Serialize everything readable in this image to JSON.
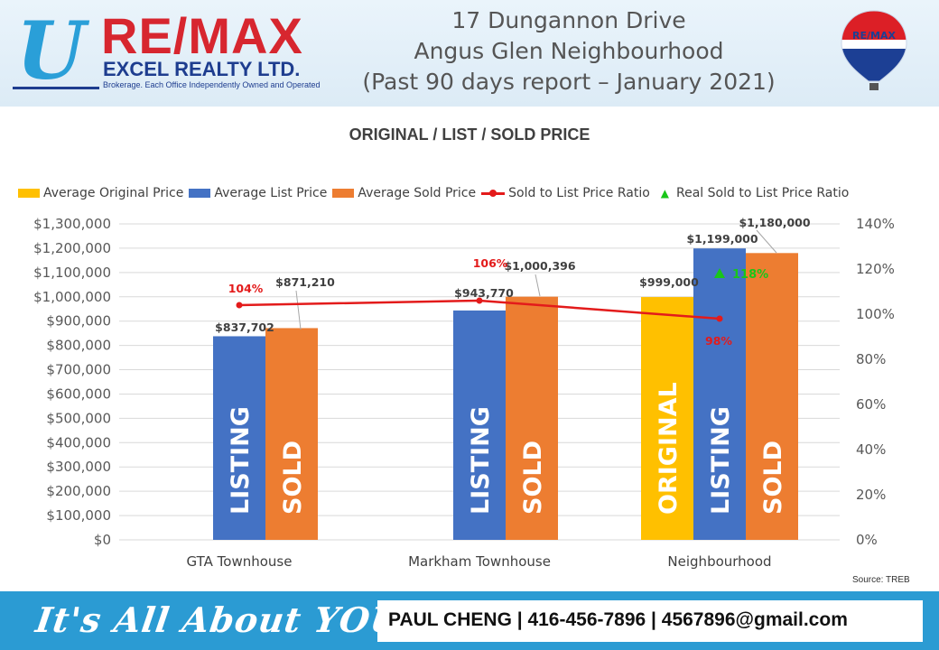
{
  "header": {
    "logo_u": "U",
    "logo_brand": "RE/MAX",
    "logo_company": "EXCEL REALTY LTD.",
    "logo_tagline": "Brokerage. Each Office Independently Owned and Operated",
    "title_lines": [
      "17 Dungannon Drive",
      "Angus Glen Neighbourhood",
      "(Past 90 days report – January 2021)"
    ],
    "balloon_text": "RE/MAX"
  },
  "footer": {
    "tagline": "It's All About YOU",
    "contact": "PAUL CHENG | 416-456-7896 | 4567896@gmail.com"
  },
  "source": "Source: TREB",
  "colors": {
    "original": "#ffc000",
    "list": "#4472c4",
    "sold": "#ed7d31",
    "ratio": "#e31b1b",
    "real_ratio": "#19c619"
  },
  "chart_data": {
    "type": "bar",
    "title": "ORIGINAL / LIST / SOLD PRICE",
    "categories": [
      "GTA Townhouse",
      "Markham Townhouse",
      "Neighbourhood"
    ],
    "series": [
      {
        "name": "Average Original Price",
        "values": [
          null,
          null,
          999000
        ],
        "labels": [
          "",
          "",
          "$999,000"
        ],
        "bar_text": [
          "",
          "",
          "ORIGINAL"
        ]
      },
      {
        "name": "Average List Price",
        "values": [
          837702,
          943770,
          1199000
        ],
        "labels": [
          "$837,702",
          "$943,770",
          "$1,199,000"
        ],
        "bar_text": [
          "LISTING",
          "LISTING",
          "LISTING"
        ]
      },
      {
        "name": "Average Sold Price",
        "values": [
          871210,
          1000396,
          1180000
        ],
        "labels": [
          "$871,210",
          "$1,000,396",
          "$1,180,000"
        ],
        "bar_text": [
          "SOLD",
          "SOLD",
          "SOLD"
        ]
      }
    ],
    "ratio_series": {
      "name": "Sold to List Price Ratio",
      "type": "line",
      "values": [
        104,
        106,
        98
      ],
      "labels": [
        "104%",
        "106%",
        "98%"
      ]
    },
    "real_ratio_series": {
      "name": "Real Sold to List Price Ratio",
      "type": "marker",
      "values": [
        null,
        null,
        118
      ],
      "labels": [
        "",
        "",
        "118%"
      ]
    },
    "ylim": [
      0,
      1300000
    ],
    "y_ticks": [
      "$0",
      "$100,000",
      "$200,000",
      "$300,000",
      "$400,000",
      "$500,000",
      "$600,000",
      "$700,000",
      "$800,000",
      "$900,000",
      "$1,000,000",
      "$1,100,000",
      "$1,200,000",
      "$1,300,000"
    ],
    "y2lim": [
      0,
      140
    ],
    "y2_ticks": [
      "0%",
      "20%",
      "40%",
      "60%",
      "80%",
      "100%",
      "120%",
      "140%"
    ],
    "xlabel": "",
    "ylabel": "",
    "grid": true,
    "legend_position": "top"
  }
}
